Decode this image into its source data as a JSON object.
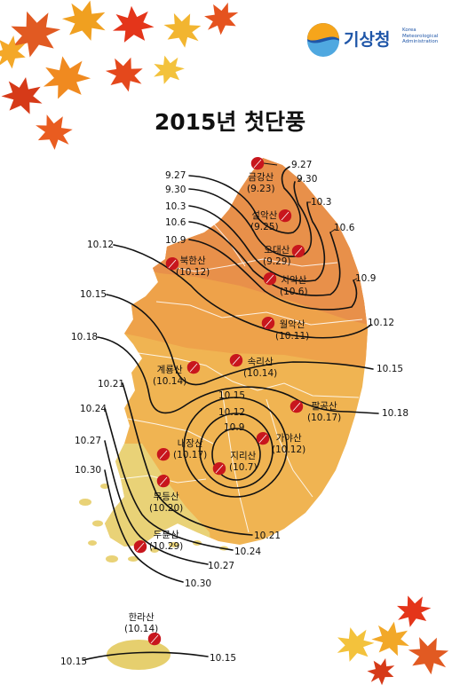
{
  "title": "2015년 첫단풍",
  "logo": {
    "name": "기상청",
    "english": [
      "Korea",
      "Meteorological",
      "Administration"
    ]
  },
  "colors": {
    "north_region": "#e8904a",
    "central_region": "#eea24a",
    "south_region": "#f0b452",
    "southwest_region": "#e9d277",
    "jeju": "#e6cf6e",
    "leaf": "#c8161d"
  },
  "mountains": [
    {
      "name": "금강산",
      "date": "(9.23)"
    },
    {
      "name": "설악산",
      "date": "(9.25)"
    },
    {
      "name": "오대산",
      "date": "(9.29)"
    },
    {
      "name": "치악산",
      "date": "(10.6)"
    },
    {
      "name": "북한산",
      "date": "(10.12)"
    },
    {
      "name": "월악산",
      "date": "(10.11)"
    },
    {
      "name": "속리산",
      "date": "(10.14)"
    },
    {
      "name": "계룡산",
      "date": "(10.14)"
    },
    {
      "name": "팔공산",
      "date": "(10.17)"
    },
    {
      "name": "내장산",
      "date": "(10.17)"
    },
    {
      "name": "가야산",
      "date": "(10.12)"
    },
    {
      "name": "지리산",
      "date": "(10.7)"
    },
    {
      "name": "무등산",
      "date": "(10.20)"
    },
    {
      "name": "두륜산",
      "date": "(10.29)"
    },
    {
      "name": "한라산",
      "date": "(10.14)"
    }
  ],
  "isoline_labels": {
    "top_right": [
      "9.27",
      "9.30"
    ],
    "top_left": [
      "9.27",
      "9.30",
      "10.3",
      "10.6",
      "10.9"
    ],
    "east": [
      "10.3",
      "10.6",
      "10.9",
      "10.12",
      "10.15",
      "10.18"
    ],
    "west": [
      "10.12",
      "10.15",
      "10.18",
      "10.21",
      "10.24",
      "10.27",
      "10.30"
    ],
    "center": [
      "10.15",
      "10.12",
      "10.9"
    ],
    "south": [
      "10.21",
      "10.24",
      "10.27",
      "10.30"
    ],
    "jeju": [
      "10.15",
      "10.15"
    ]
  }
}
